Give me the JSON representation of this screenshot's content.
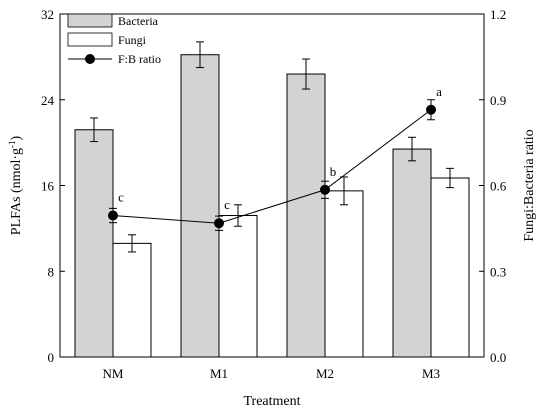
{
  "chart_data": {
    "type": "bar",
    "xlabel": "Treatment",
    "ylabel_left": "PLFAs (nmol·g",
    "ylabel_left_sup": "-1",
    "ylabel_left_end": ")",
    "ylabel_right": "Fungi:Bacteria ratio",
    "categories": [
      "NM",
      "M1",
      "M2",
      "M3"
    ],
    "ylim_left": [
      0,
      32
    ],
    "yticks_left": [
      "0",
      "8",
      "16",
      "24",
      "32"
    ],
    "ylim_right": [
      0,
      1.2
    ],
    "yticks_right": [
      "0.0",
      "0.3",
      "0.6",
      "0.9",
      "1.2"
    ],
    "series": [
      {
        "name": "Bacteria",
        "kind": "bar",
        "color": "#d3d3d3",
        "values": [
          21.2,
          28.2,
          26.4,
          19.4
        ],
        "errors": [
          1.1,
          1.2,
          1.4,
          1.1
        ]
      },
      {
        "name": "Fungi",
        "kind": "bar",
        "color": "#ffffff",
        "values": [
          10.6,
          13.2,
          15.5,
          16.7
        ],
        "errors": [
          0.8,
          1.0,
          1.3,
          0.9
        ]
      },
      {
        "name": "F:B ratio",
        "kind": "line",
        "color": "#000000",
        "axis": "right",
        "values": [
          0.495,
          0.468,
          0.585,
          0.865
        ],
        "errors": [
          0.025,
          0.025,
          0.03,
          0.035
        ]
      }
    ],
    "annotations": [
      "c",
      "c",
      "b",
      "a"
    ],
    "legend_position": "top-left"
  }
}
